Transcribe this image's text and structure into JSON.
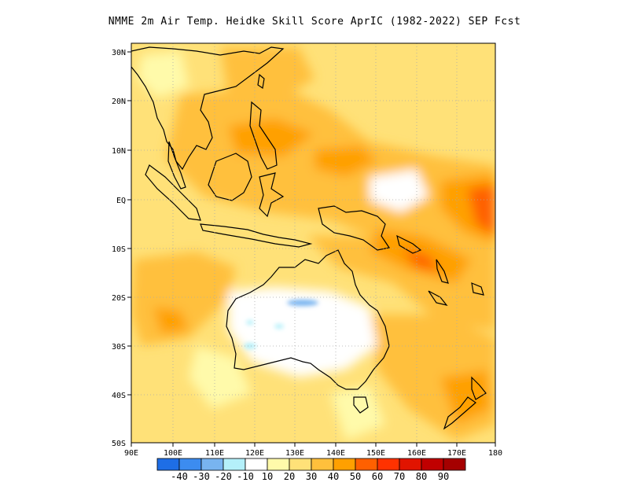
{
  "title": "NMME  2m Air Temp. Heidke Skill Score AprIC (1982-2022) SEP Fcst",
  "lat_labels": [
    "30N",
    "20N",
    "10N",
    "EQ",
    "10S",
    "20S",
    "30S",
    "40S",
    "50S"
  ],
  "lon_labels": [
    "90E",
    "100E",
    "110E",
    "120E",
    "130E",
    "140E",
    "150E",
    "160E",
    "170E",
    "180"
  ],
  "colorbar": {
    "colors": [
      "#1e6ee6",
      "#3c8cf0",
      "#78b4f0",
      "#b4f0fa",
      "#ffffff",
      "#fffaaa",
      "#ffe178",
      "#ffc03c",
      "#ffa000",
      "#ff6000",
      "#ff3200",
      "#e11400",
      "#c00000",
      "#a50000"
    ],
    "labels": [
      "-40",
      "-30",
      "-20",
      "-10",
      "10",
      "20",
      "30",
      "40",
      "50",
      "60",
      "70",
      "80",
      "90"
    ]
  }
}
